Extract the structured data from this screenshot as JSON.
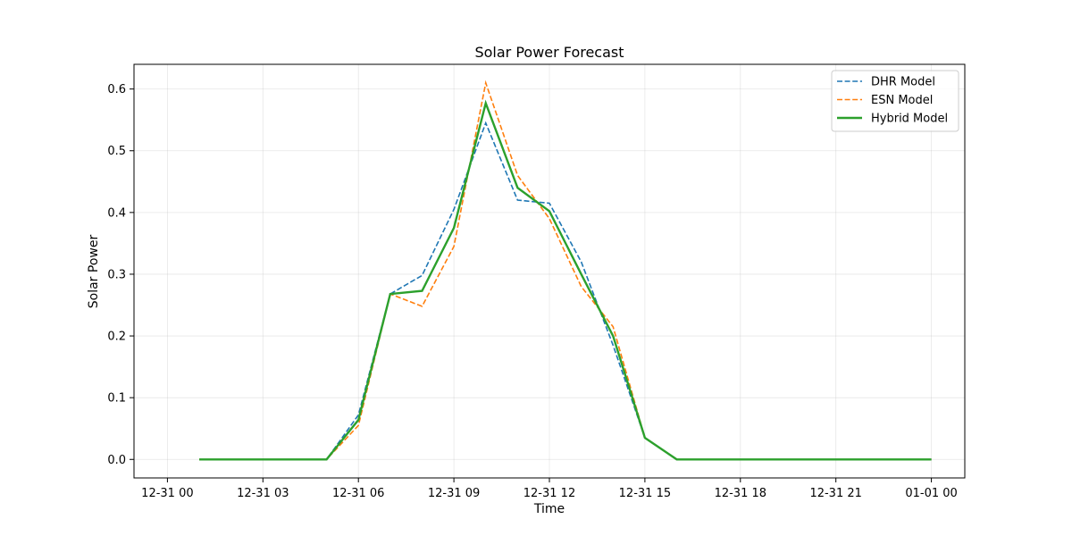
{
  "chart_data": {
    "type": "line",
    "title": "Solar Power Forecast",
    "xlabel": "Time",
    "ylabel": "Solar Power",
    "x_tick_labels": [
      "12-31 00",
      "12-31 03",
      "12-31 06",
      "12-31 09",
      "12-31 12",
      "12-31 15",
      "12-31 18",
      "12-31 21",
      "01-01 00"
    ],
    "x_tick_hours": [
      0,
      3,
      6,
      9,
      12,
      15,
      18,
      21,
      24
    ],
    "xlim": [
      -1.05,
      25.05
    ],
    "ylim": [
      -0.03,
      0.64
    ],
    "y_ticks": [
      0.0,
      0.1,
      0.2,
      0.3,
      0.4,
      0.5,
      0.6
    ],
    "y_tick_labels": [
      "0.0",
      "0.1",
      "0.2",
      "0.3",
      "0.4",
      "0.5",
      "0.6"
    ],
    "grid": true,
    "legend_position": "top-right",
    "x": [
      1,
      2,
      3,
      4,
      5,
      6,
      7,
      8,
      9,
      10,
      11,
      12,
      13,
      14,
      15,
      16,
      17,
      18,
      19,
      20,
      21,
      22,
      23,
      24
    ],
    "series": [
      {
        "name": "DHR Model",
        "color": "#1f77b4",
        "style": "dashed",
        "values": [
          0.0,
          0.0,
          0.0,
          0.0,
          0.0,
          0.072,
          0.268,
          0.298,
          0.405,
          0.545,
          0.42,
          0.415,
          0.32,
          0.185,
          0.035,
          0.0,
          0.0,
          0.0,
          0.0,
          0.0,
          0.0,
          0.0,
          0.0,
          0.0
        ]
      },
      {
        "name": "ESN Model",
        "color": "#ff7f0e",
        "style": "dashed",
        "values": [
          0.0,
          0.0,
          0.0,
          0.0,
          0.0,
          0.055,
          0.268,
          0.248,
          0.345,
          0.61,
          0.46,
          0.39,
          0.28,
          0.215,
          0.035,
          0.0,
          0.0,
          0.0,
          0.0,
          0.0,
          0.0,
          0.0,
          0.0,
          0.0
        ]
      },
      {
        "name": "Hybrid Model",
        "color": "#2ca02c",
        "style": "solid",
        "values": [
          0.0,
          0.0,
          0.0,
          0.0,
          0.0,
          0.064,
          0.268,
          0.273,
          0.375,
          0.577,
          0.44,
          0.402,
          0.3,
          0.2,
          0.035,
          0.0,
          0.0,
          0.0,
          0.0,
          0.0,
          0.0,
          0.0,
          0.0,
          0.0
        ]
      }
    ]
  }
}
